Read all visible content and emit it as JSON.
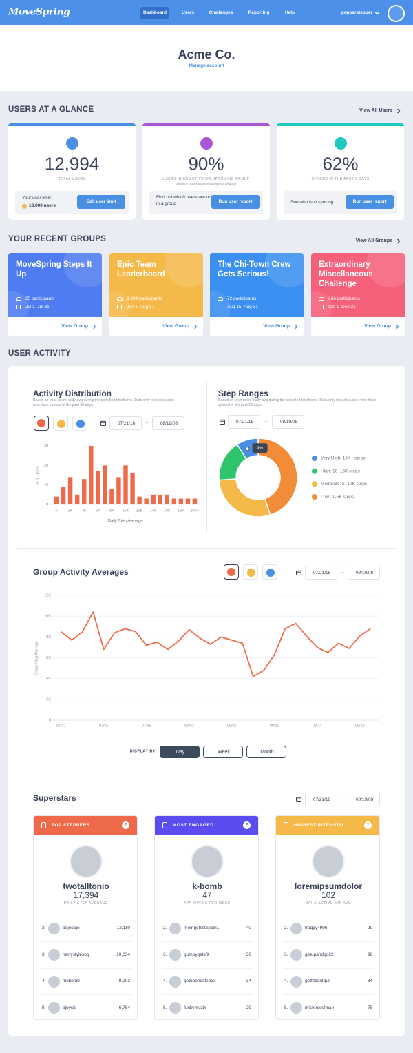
{
  "nav": {
    "logo": "MoveSpring",
    "links": [
      "Dashboard",
      "Users",
      "Challenges",
      "Reporting",
      "Help"
    ],
    "active": 0,
    "user": "pepperstepper"
  },
  "header": {
    "title": "Acme Co.",
    "link": "Manage account"
  },
  "date_separator": "–",
  "glance": {
    "title": "USERS AT A GLANCE",
    "link": "View All Users",
    "cards": [
      {
        "color": "#4a90e2",
        "value": "12,994",
        "label": "TOTAL USERS",
        "box_text": "Your user limit:",
        "box_strong": "13,000 users",
        "button": "Edit user limit"
      },
      {
        "color": "#a855d8",
        "value": "90%",
        "label": "USERS IN AN ACTIVE OR UPCOMING GROUP",
        "note": "Includes user-created challenges if enabled",
        "box_text": "Find out which users are not in a group",
        "button": "Run user report"
      },
      {
        "color": "#20c9c0",
        "value": "62%",
        "label": "SYNCED IN THE PAST 3 DAYS",
        "box_text": "See who isn't syncing",
        "button": "Run user report"
      }
    ]
  },
  "groups": {
    "title": "YOUR RECENT GROUPS",
    "link": "View All Groups",
    "items": [
      {
        "name": "MoveSpring Steps It Up",
        "participants": "25 participants",
        "dates": "Jul 1–Jul 31",
        "color": "#4f7cf0",
        "link": "View Group"
      },
      {
        "name": "Epic Team Leaderboard",
        "participants": "9,394 participants",
        "dates": "Jun 1–Aug 31",
        "color": "#f5b94a",
        "link": "View Group"
      },
      {
        "name": "The Chi-Town Crew Gets Serious!",
        "participants": "72 participants",
        "dates": "Aug 15–Aug 31",
        "color": "#3b8ff0",
        "link": "View Group"
      },
      {
        "name": "Extraordinary Miscellaneous Challenge",
        "participants": "636 participants",
        "dates": "Oct 1–Dec 31",
        "color": "#f5607a",
        "link": "View Group"
      }
    ]
  },
  "activity_title": "USER ACTIVITY",
  "chart_data": [
    {
      "type": "bar",
      "title": "Activity Distribution",
      "subtitle": "Based on your users' daily avg during the specified timeframe. Data only includes users who have synced in the past 30 days.",
      "date_range": [
        "07/21/18",
        "08/19/08"
      ],
      "categories": [
        "0",
        null,
        "2K",
        null,
        "4K",
        null,
        "6K",
        null,
        "8K",
        null,
        "10K",
        null,
        "12K",
        null,
        "14K",
        null,
        "16K",
        null,
        "18K",
        null,
        "20K+"
      ],
      "values": [
        4,
        9,
        14,
        5,
        13,
        30,
        17,
        20,
        8,
        14,
        20,
        16,
        4,
        3,
        5,
        5,
        5,
        3,
        3,
        3,
        3
      ],
      "color": "#ee6a4a",
      "ylim": [
        0,
        30
      ],
      "yticks": [
        0,
        10,
        20,
        30
      ],
      "xlabel": "Daily Step Average",
      "ylabel": "% of Users",
      "grid": false
    },
    {
      "type": "pie",
      "title": "Step Ranges",
      "subtitle": "Based on your users' daily avg during the specified timeframe. Data only includes users who have synced in the past 30 days.",
      "date_range": [
        "07/21/18",
        "08/19/08"
      ],
      "categories": [
        "Very High: 15K+ steps",
        "High: 10–15K steps",
        "Moderate: 5–10K steps",
        "Low: 0–5K steps"
      ],
      "values": [
        9,
        17,
        29,
        45
      ],
      "value_labels": [
        "9%",
        null,
        null,
        null
      ],
      "colors": [
        "#4a90e2",
        "#2ec46a",
        "#f5b94a",
        "#f28c38"
      ],
      "donut": true
    },
    {
      "type": "line",
      "title": "Group Activity Averages",
      "date_range": [
        "07/21/18",
        "08/19/08"
      ],
      "categories": [
        "07/21",
        null,
        null,
        null,
        "07/25",
        null,
        null,
        null,
        "07/29",
        null,
        null,
        null,
        "08/02",
        null,
        null,
        null,
        "08/06",
        null,
        null,
        null,
        "08/10",
        null,
        null,
        null,
        "08/14",
        null,
        null,
        null,
        "08/18",
        null
      ],
      "values": [
        8500,
        7700,
        8500,
        10400,
        6800,
        8400,
        8800,
        8500,
        7200,
        7500,
        6800,
        7600,
        8700,
        7900,
        7300,
        8000,
        7700,
        7400,
        4200,
        4800,
        6300,
        8800,
        9300,
        8100,
        7000,
        6500,
        7400,
        6900,
        8100,
        8800
      ],
      "color": "#ee6a4a",
      "ylim": [
        0,
        12000
      ],
      "yticks": [
        0,
        {
          "value": 2000,
          "label": "2K"
        },
        {
          "value": 4000,
          "label": "4K"
        },
        {
          "value": 6000,
          "label": "6K"
        },
        {
          "value": 8000,
          "label": "8K"
        },
        {
          "value": 10000,
          "label": "10K"
        },
        {
          "value": 12000,
          "label": "12K"
        }
      ],
      "ylabel": "Group Step Average",
      "grid": true,
      "display_by": {
        "label": "DISPLAY BY:",
        "options": [
          "Day",
          "Week",
          "Month"
        ],
        "active": 0
      }
    }
  ],
  "superstars": {
    "title": "Superstars",
    "date_range": [
      "07/21/18",
      "08/19/08"
    ],
    "help": "?",
    "cards": [
      {
        "title": "TOP STEPPERS",
        "color": "#ee6a4a",
        "leader": "twotalltonio",
        "value": "17,394",
        "label": "DAILY STEP AVERAGE",
        "rows": [
          [
            "2.",
            "bojooojo",
            "12,110"
          ],
          [
            "3.",
            "harrystylesog",
            "10,034"
          ],
          [
            "4.",
            "mkbomb",
            "9,903"
          ],
          [
            "5.",
            "bjoyski",
            "6,784"
          ]
        ]
      },
      {
        "title": "MOST ENGAGED",
        "color": "#5b4cf0",
        "leader": "k-bomb",
        "value": "47",
        "label": "APP OPENS PER WEEK",
        "rows": [
          [
            "2.",
            "momgetssteppin1",
            "40"
          ],
          [
            "3.",
            "gumbygetsfit",
            "36"
          ],
          [
            "4.",
            "getupandstep33",
            "34"
          ],
          [
            "5.",
            "funkymuzik",
            "29"
          ]
        ]
      },
      {
        "title": "HIGHEST INTENSTIY",
        "color": "#f5b94a",
        "leader": "loremipsumdolor",
        "value": "102",
        "label": "DAILY ACTIVE MIN AVG",
        "rows": [
          [
            "2.",
            "froggy4996",
            "99"
          ],
          [
            "3.",
            "getupandgo22",
            "92"
          ],
          [
            "4.",
            "getfitdontquit",
            "84"
          ],
          [
            "5.",
            "mistercoolman",
            "78"
          ]
        ]
      }
    ]
  }
}
